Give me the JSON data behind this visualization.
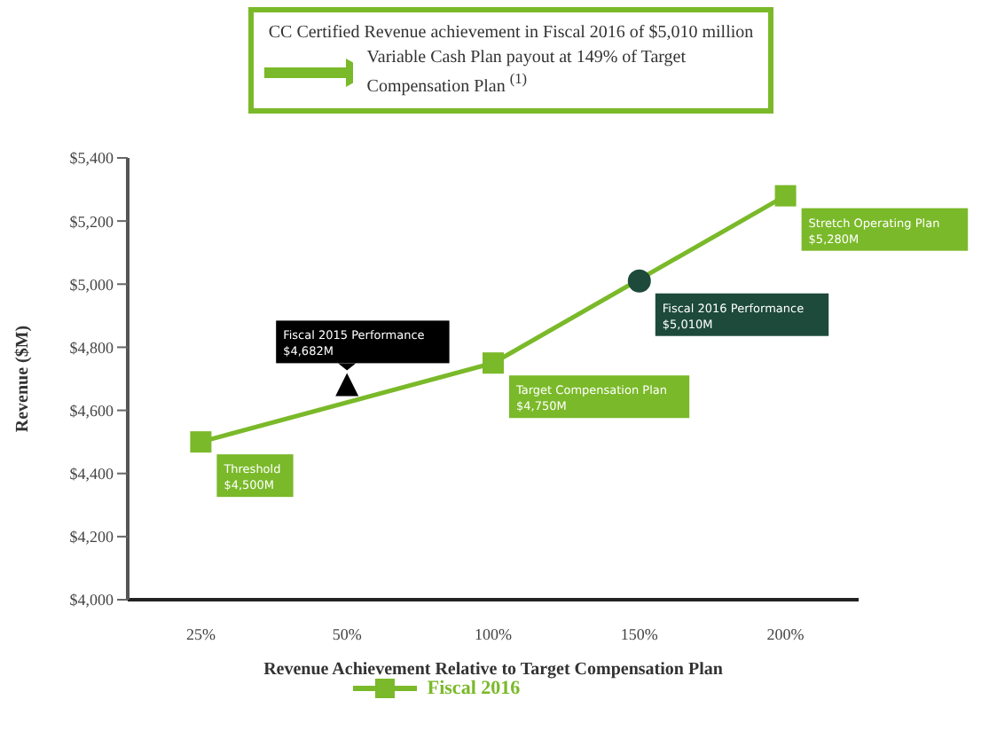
{
  "chart_data": {
    "type": "line",
    "title": "CC Certified Revenue achievement in Fiscal 2016 of $5,010 million",
    "subtitle": "Variable Cash Plan payout at 149% of Target Compensation Plan $^{(1)}$",
    "xlabel": "Revenue Achievement Relative to Target Compensation Plan",
    "ylabel": "Revenue ($M)",
    "categories": [
      "25%",
      "50%",
      "100%",
      "150%",
      "200%"
    ],
    "series": [
      {
        "name": "Fiscal 2016",
        "color": "#7ab929",
        "marker": "square",
        "x": [
          "25%",
          "100%",
          "200%"
        ],
        "values": [
          4500,
          4750,
          5280
        ]
      },
      {
        "type": "scatter",
        "color": "#000000",
        "marker": "triangle",
        "x": [
          "50%"
        ],
        "values": [
          4682
        ]
      },
      {
        "type": "scatter",
        "color": "#1d4a3a",
        "marker": "circle",
        "x": [
          "150%"
        ],
        "values": [
          5010
        ]
      }
    ],
    "ylim": [
      4000,
      5400
    ],
    "yticks": [
      {
        "value": 4000,
        "label": "$4,000"
      },
      {
        "value": 4200,
        "label": "$4,200"
      },
      {
        "value": 4400,
        "label": "$4,400"
      },
      {
        "value": 4600,
        "label": "$4,600"
      },
      {
        "value": 4800,
        "label": "$4,800"
      },
      {
        "value": 5000,
        "label": "$5,000"
      },
      {
        "value": 5200,
        "label": "$5,200"
      },
      {
        "value": 5400,
        "label": "$5,400"
      }
    ],
    "grid": false,
    "legend": "bottom",
    "annotations": [
      {
        "text": "Threshold\n$4,500M",
        "x": "25%",
        "y": 4500
      },
      {
        "text": "Fiscal 2015 Performance\n$4,682M",
        "x": "50%",
        "y": 4682
      },
      {
        "text": "Target Compensation Plan\n$4,750M",
        "x": "100%",
        "y": 4750
      },
      {
        "text": "Fiscal 2016 Performance\n$5,010M",
        "x": "150%",
        "y": 5010
      },
      {
        "text": "Stretch Operating Plan\n$5,280M",
        "x": "200%",
        "y": 5280
      }
    ]
  }
}
